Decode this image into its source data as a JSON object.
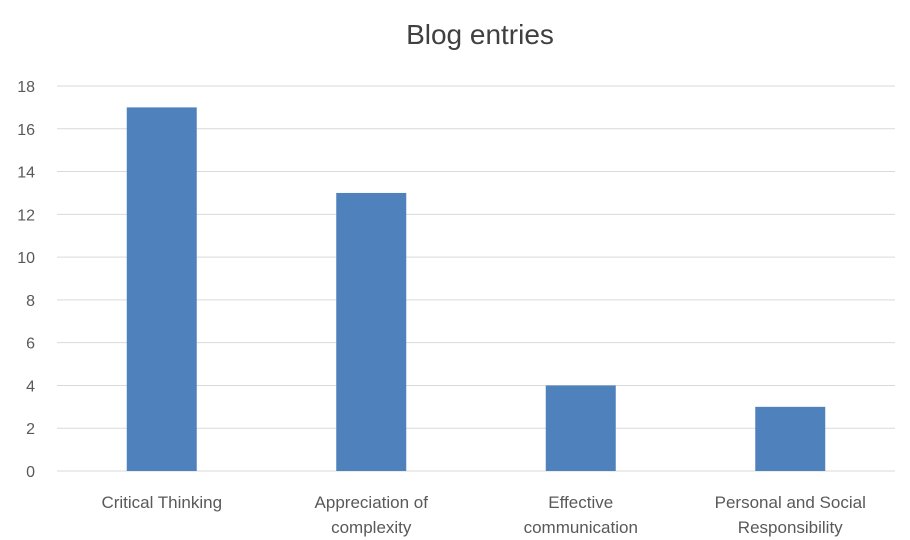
{
  "chart_data": {
    "type": "bar",
    "title": "Blog entries",
    "xlabel": "",
    "ylabel": "",
    "categories": [
      [
        "Critical Thinking"
      ],
      [
        "Appreciation of",
        "complexity"
      ],
      [
        "Effective",
        "communication"
      ],
      [
        "Personal and Social",
        "Responsibility"
      ]
    ],
    "values": [
      17,
      13,
      4,
      3
    ],
    "ylim": [
      0,
      18
    ],
    "yticks": [
      0,
      2,
      4,
      6,
      8,
      10,
      12,
      14,
      16,
      18
    ],
    "grid": true,
    "legend": "none",
    "bar_color": "#4f81bd"
  }
}
